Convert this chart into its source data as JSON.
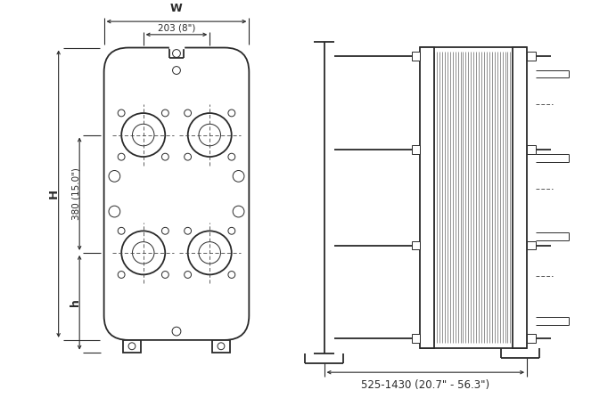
{
  "bg_color": "#ffffff",
  "line_color": "#2a2a2a",
  "dim_color": "#2a2a2a",
  "dim_W_label": "W",
  "dim_W_value": "203 (8\")",
  "dim_H_label": "H",
  "dim_380_value": "380 (15.0\")",
  "dim_h_label": "h",
  "dim_length_value": "525-1430 (20.7\" - 56.3\")"
}
